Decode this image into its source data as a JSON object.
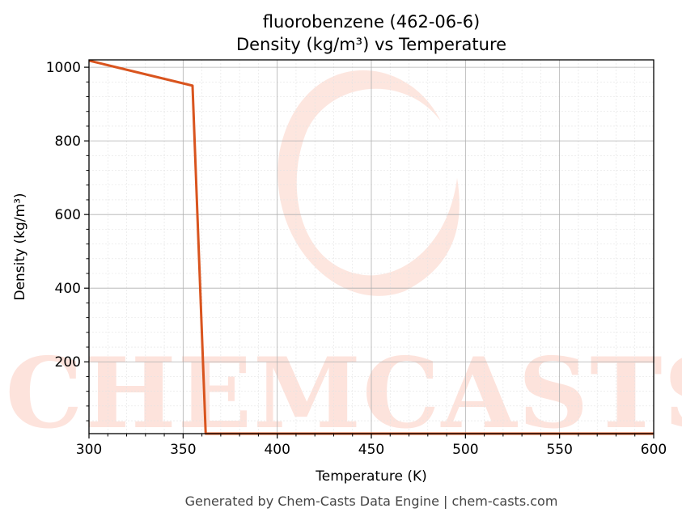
{
  "chart_data": {
    "type": "line",
    "title_line1": "fluorobenzene (462-06-6)",
    "title_line2": "Density (kg/m³) vs Temperature",
    "xlabel": "Temperature (K)",
    "ylabel": "Density (kg/m³)",
    "xlim": [
      300,
      600
    ],
    "ylim": [
      5,
      1020
    ],
    "xticks": [
      300,
      350,
      400,
      450,
      500,
      550,
      600
    ],
    "yticks": [
      200,
      400,
      600,
      800,
      1000
    ],
    "grid": true,
    "series": [
      {
        "color": "#d9541e",
        "x": [
          300,
          355,
          362,
          400,
          450,
          500,
          550,
          600
        ],
        "y": [
          1018,
          950,
          5,
          5,
          5,
          5,
          5,
          5
        ]
      }
    ]
  },
  "watermark": {
    "text": "CHEMCASTS",
    "color": "#fde3dc"
  },
  "footer": "Generated by Chem-Casts Data Engine | chem-casts.com"
}
